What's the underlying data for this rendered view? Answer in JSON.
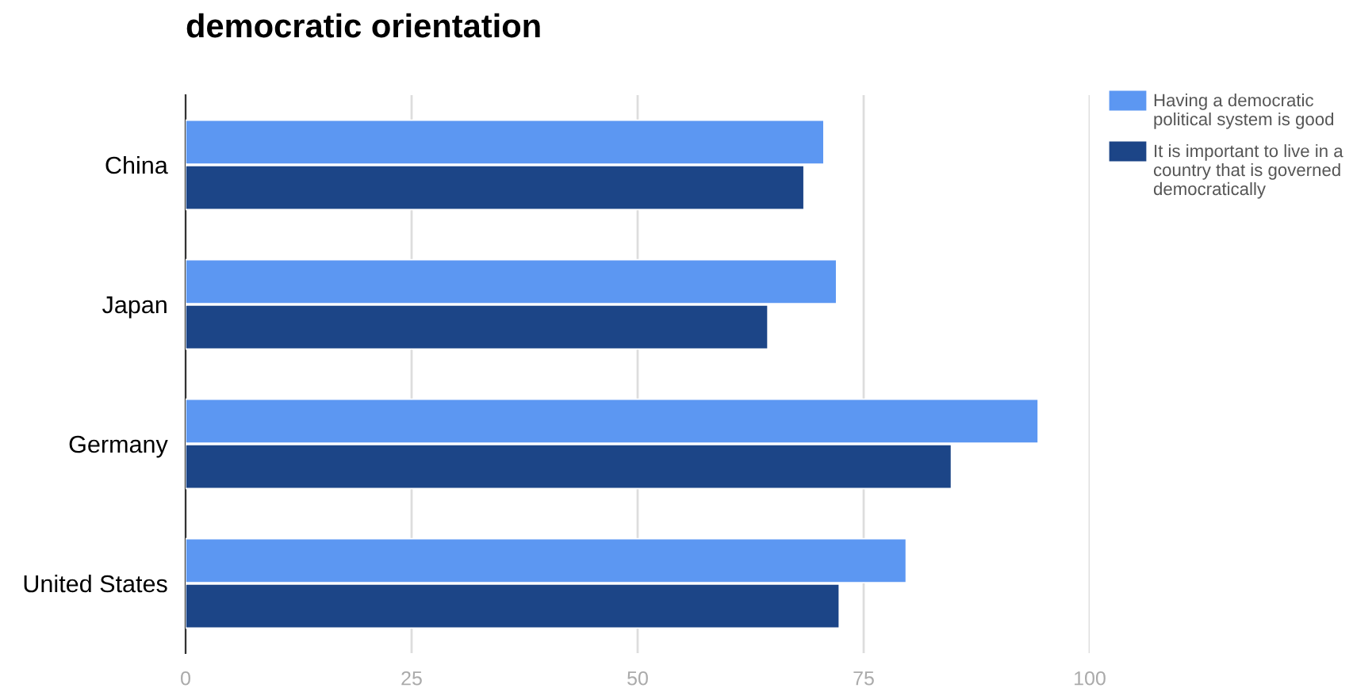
{
  "chart_data": {
    "type": "bar",
    "orientation": "horizontal",
    "title": "democratic orientation",
    "categories": [
      "China",
      "Japan",
      "Germany",
      "United States"
    ],
    "series": [
      {
        "name": "Having a democratic political system is good",
        "color": "#5c97f2",
        "values": [
          70.6,
          72.0,
          94.3,
          79.7
        ]
      },
      {
        "name": "It is important to live in a country that is governed democratically",
        "color": "#1c4587",
        "values": [
          68.4,
          64.4,
          84.7,
          72.3
        ]
      }
    ],
    "xlim": [
      0,
      100
    ],
    "xticks": [
      0,
      25,
      50,
      75,
      100
    ],
    "grid": "x",
    "legend": "top right"
  }
}
